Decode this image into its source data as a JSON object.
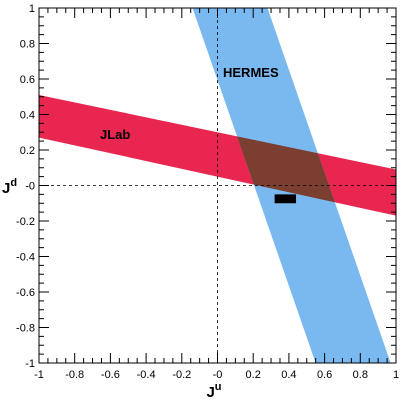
{
  "chart_data": {
    "type": "area",
    "title": "",
    "xlabel": {
      "base": "J",
      "sup": "u"
    },
    "ylabel": {
      "base": "J",
      "sup": "d"
    },
    "xlim": [
      -1,
      1
    ],
    "ylim": [
      -1,
      1
    ],
    "xticks": [
      "-1",
      "-0.8",
      "-0.6",
      "-0.4",
      "-0.2",
      "-0",
      "0.2",
      "0.4",
      "0.6",
      "0.8",
      "1"
    ],
    "yticks": [
      "-1",
      "-0.8",
      "-0.6",
      "-0.4",
      "-0.2",
      "-0",
      "0.2",
      "0.4",
      "0.6",
      "0.8",
      "1"
    ],
    "grid": false,
    "reference_lines": {
      "x": 0,
      "y": 0,
      "style": "dashed"
    },
    "series": [
      {
        "name": "JLab",
        "color": "#e8264f",
        "polygon": [
          [
            -1,
            0.51
          ],
          [
            1,
            0.09
          ],
          [
            1,
            -0.17
          ],
          [
            -1,
            0.27
          ]
        ]
      },
      {
        "name": "HERMES",
        "color": "#7ab8f0",
        "polygon": [
          [
            -0.14,
            1
          ],
          [
            0.28,
            1
          ],
          [
            0.97,
            -1
          ],
          [
            0.55,
            -1
          ]
        ]
      }
    ],
    "overlap_color": "#7a3f30",
    "marker": {
      "shape": "rectangle",
      "color": "#000000",
      "x": [
        0.32,
        0.44
      ],
      "y": [
        -0.1,
        -0.05
      ]
    }
  }
}
